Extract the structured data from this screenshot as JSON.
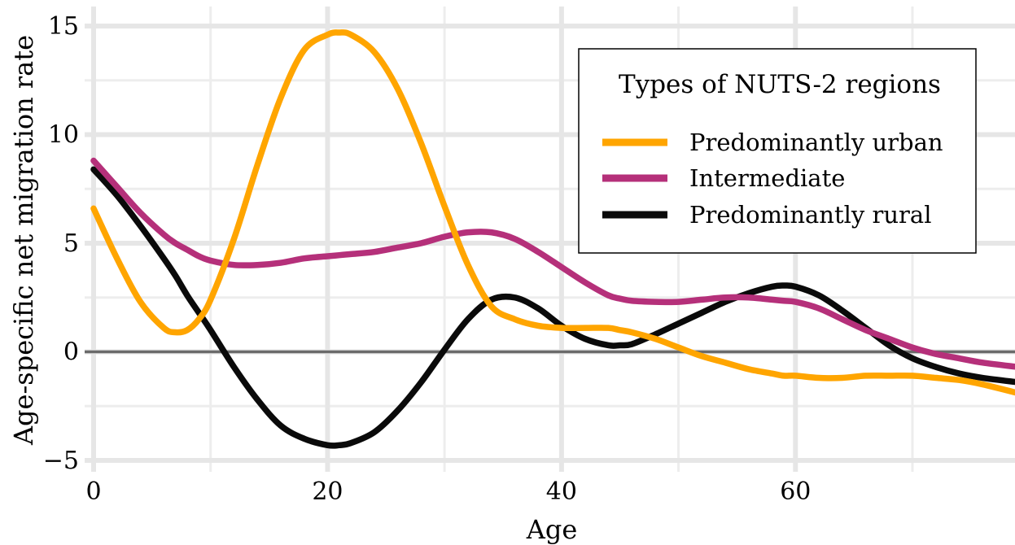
{
  "chart_data": {
    "type": "line",
    "xlabel": "Age",
    "ylabel": "Age-specific net migration rate",
    "xlim": [
      0,
      78
    ],
    "ylim": [
      -5,
      15
    ],
    "x_ticks": [
      0,
      20,
      40,
      60
    ],
    "x_tick_labels": [
      "0",
      "20",
      "40",
      "60"
    ],
    "y_ticks": [
      -5,
      0,
      5,
      10,
      15
    ],
    "y_tick_labels": [
      "−5",
      "0",
      "5",
      "10",
      "15"
    ],
    "grid": true,
    "zero_line": true,
    "legend": {
      "title": "Types of NUTS-2 regions",
      "placement": "top-right"
    },
    "x": [
      0,
      2,
      4,
      6,
      7,
      8,
      9,
      10,
      12,
      14,
      16,
      18,
      20,
      21,
      22,
      24,
      26,
      28,
      30,
      32,
      34,
      36,
      38,
      40,
      42,
      44,
      45,
      46,
      48,
      50,
      52,
      54,
      56,
      58,
      59,
      60,
      62,
      64,
      66,
      68,
      70,
      72,
      74,
      76,
      79
    ],
    "series": [
      {
        "name": "Predominantly urban",
        "color": "#FFA500",
        "values": [
          6.6,
          4.3,
          2.3,
          1.1,
          0.9,
          1.0,
          1.5,
          2.4,
          5.2,
          8.6,
          11.7,
          13.9,
          14.6,
          14.7,
          14.6,
          13.8,
          12.1,
          9.6,
          6.7,
          4.0,
          2.1,
          1.5,
          1.2,
          1.1,
          1.1,
          1.1,
          1.0,
          0.9,
          0.6,
          0.2,
          -0.2,
          -0.5,
          -0.8,
          -1.0,
          -1.1,
          -1.1,
          -1.2,
          -1.2,
          -1.1,
          -1.1,
          -1.1,
          -1.2,
          -1.3,
          -1.5,
          -1.9
        ]
      },
      {
        "name": "Intermediate",
        "color": "#B5307A",
        "values": [
          8.8,
          7.6,
          6.4,
          5.4,
          5.0,
          4.7,
          4.4,
          4.2,
          4.0,
          4.0,
          4.1,
          4.3,
          4.4,
          4.45,
          4.5,
          4.6,
          4.8,
          5.0,
          5.3,
          5.5,
          5.5,
          5.2,
          4.6,
          3.9,
          3.2,
          2.6,
          2.45,
          2.35,
          2.3,
          2.3,
          2.4,
          2.5,
          2.5,
          2.4,
          2.35,
          2.3,
          2.0,
          1.5,
          1.0,
          0.6,
          0.2,
          -0.1,
          -0.3,
          -0.5,
          -0.7
        ]
      },
      {
        "name": "Predominantly rural",
        "color": "#0A0A0A",
        "values": [
          8.4,
          7.2,
          5.8,
          4.3,
          3.5,
          2.6,
          1.8,
          1.0,
          -0.7,
          -2.2,
          -3.4,
          -4.0,
          -4.3,
          -4.3,
          -4.2,
          -3.7,
          -2.7,
          -1.4,
          0.1,
          1.5,
          2.4,
          2.5,
          2.0,
          1.2,
          0.6,
          0.3,
          0.3,
          0.35,
          0.8,
          1.3,
          1.8,
          2.3,
          2.7,
          3.0,
          3.05,
          3.0,
          2.6,
          1.9,
          1.1,
          0.3,
          -0.3,
          -0.7,
          -1.0,
          -1.2,
          -1.4
        ]
      }
    ]
  }
}
